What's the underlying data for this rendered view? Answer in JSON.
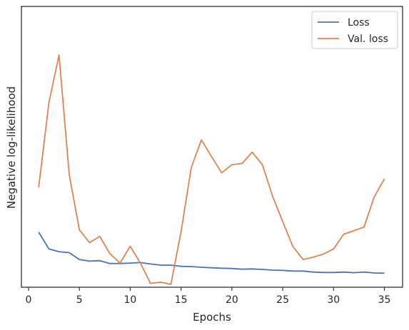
{
  "chart_data": {
    "type": "line",
    "xlabel": "Epochs",
    "ylabel": "Negative log-likelihood",
    "xlim": [
      -1,
      36.8
    ],
    "ylim": [
      0,
      100
    ],
    "xticks": [
      0,
      5,
      10,
      15,
      20,
      25,
      30,
      35
    ],
    "yticks_visible": false,
    "grid": false,
    "legend_position": "top-right",
    "x": [
      1,
      2,
      3,
      4,
      5,
      6,
      7,
      8,
      9,
      10,
      11,
      12,
      13,
      14,
      15,
      16,
      17,
      18,
      19,
      20,
      21,
      22,
      23,
      24,
      25,
      26,
      27,
      28,
      29,
      30,
      31,
      32,
      33,
      34,
      35
    ],
    "series": [
      {
        "name": "Loss",
        "color": "#4c72b0",
        "values": [
          19.8,
          12.8,
          11.6,
          11.2,
          8.3,
          7.6,
          7.8,
          6.6,
          6.6,
          6.8,
          7.0,
          6.4,
          5.9,
          5.9,
          5.4,
          5.3,
          5.0,
          4.8,
          4.6,
          4.5,
          4.2,
          4.3,
          4.1,
          3.8,
          3.7,
          3.4,
          3.4,
          3.0,
          2.8,
          2.8,
          3.0,
          2.7,
          3.0,
          2.6,
          2.5
        ]
      },
      {
        "name": "Val. loss",
        "color": "#dd8452",
        "values": [
          38.8,
          74.6,
          94.8,
          44.2,
          20.8,
          15.4,
          18.1,
          10.8,
          6.8,
          13.9,
          6.8,
          -1.8,
          -1.3,
          -2.2,
          19.9,
          47.1,
          58.9,
          51.8,
          45.0,
          48.4,
          48.9,
          53.7,
          48.4,
          35.2,
          24.3,
          13.8,
          8.3,
          9.3,
          10.6,
          12.8,
          19.0,
          20.5,
          22.0,
          34.8,
          42.4
        ]
      }
    ]
  }
}
